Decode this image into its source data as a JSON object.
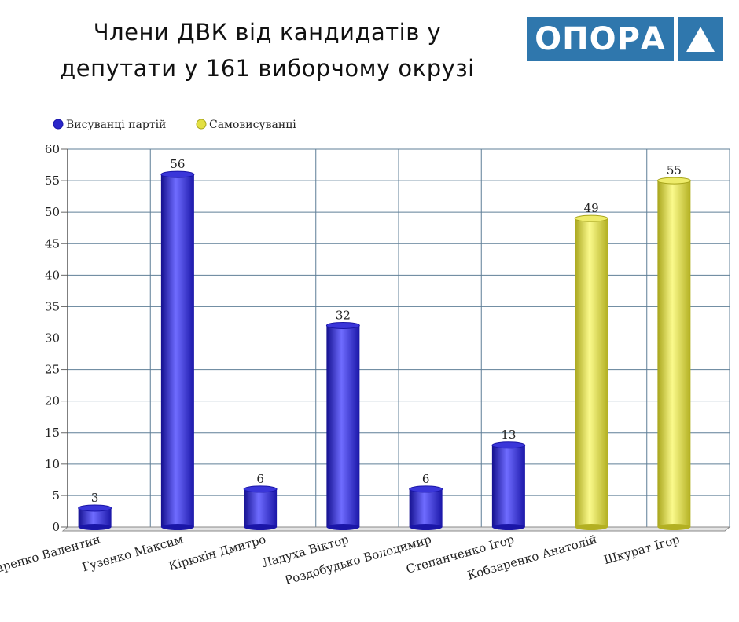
{
  "header": {
    "title_line1": "Члени ДВК  від кандидатів у",
    "title_line2": "депутати у 161 виборчому окрузі"
  },
  "logo": {
    "text": "ОПОРА",
    "color": "#2f77ad"
  },
  "chart_data": {
    "type": "bar",
    "title": "Члени ДВК від кандидатів у депутати у 161 виборчому окрузі",
    "xlabel": "",
    "ylabel": "",
    "ylim": [
      0,
      60
    ],
    "yticks": [
      0,
      5,
      10,
      15,
      20,
      25,
      30,
      35,
      40,
      45,
      50,
      55,
      60
    ],
    "grid": true,
    "legend_position": "top-left",
    "categories": [
      "Бондаренко Валентин",
      "Гузенко Максим",
      "Кірюхін Дмитро",
      "Ладуха Віктор",
      "Роздобудько Володимир",
      "Степанченко Ігор",
      "Кобзаренко Анатолій",
      "Шкурат Ігор"
    ],
    "series": [
      {
        "name": "Висуванці партій",
        "color": "#2a26c9",
        "values": [
          3,
          56,
          6,
          32,
          6,
          13,
          null,
          null
        ]
      },
      {
        "name": "Самовисуванці",
        "color": "#e3e042",
        "values": [
          null,
          null,
          null,
          null,
          null,
          null,
          49,
          55
        ]
      }
    ]
  }
}
